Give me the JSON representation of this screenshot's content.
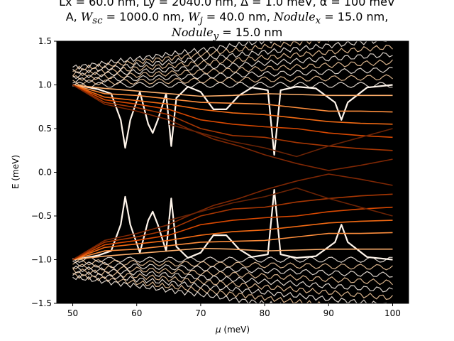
{
  "chart_data": {
    "type": "line",
    "title_lines": [
      "Lx = 60.0 nm, Ly = 2040.0 nm, Δ = 1.0 meV, α = 100 meV",
      "A, W_sc = 1000.0 nm, W_j = 40.0 nm, Nodule_x = 15.0 nm,",
      "Nodule_y = 15.0 nm"
    ],
    "title_parts": {
      "line1": "Lx = 60.0 nm, Ly = 2040.0 nm, Δ = 1.0 meV, α = 100 meV",
      "line2_a": "A, ",
      "line2_wsc": "W",
      "line2_wsc_sub": "sc",
      "line2_b": " = 1000.0 nm, ",
      "line2_wj": "W",
      "line2_wj_sub": "j",
      "line2_c": " = 40.0 nm, ",
      "line2_nx": "Nodule",
      "line2_nx_sub": "x",
      "line2_d": " = 15.0 nm,",
      "line3_ny": "Nodule",
      "line3_ny_sub": "y",
      "line3_e": " = 15.0 nm"
    },
    "xlabel_symbol": "μ",
    "xlabel_unit": " (meV)",
    "ylabel": "E (meV)",
    "xlim": [
      47.5,
      102.5
    ],
    "ylim": [
      -1.5,
      1.5
    ],
    "xticks": [
      50,
      60,
      70,
      80,
      90,
      100
    ],
    "yticks": [
      -1.5,
      -1.0,
      -0.5,
      0.0,
      0.5,
      1.0,
      1.5
    ],
    "xtick_labels": [
      "50",
      "60",
      "70",
      "80",
      "90",
      "100"
    ],
    "ytick_labels": [
      "−1.5",
      "−1.0",
      "−0.5",
      "0.0",
      "0.5",
      "1.0",
      "1.5"
    ],
    "grid": false,
    "background_color": "#000000",
    "colormap": "Oranges_r (dark to light)",
    "gap_closings_mu": [
      58.2,
      62.5,
      65.4,
      81.5
    ],
    "series": [
      {
        "name": "gap-state",
        "color": "#fff5eb",
        "x": [
          50,
          52,
          54,
          56,
          57.5,
          58.2,
          59,
          60.5,
          61.8,
          62.5,
          63.3,
          64.6,
          65.4,
          66.2,
          68,
          70,
          72,
          74,
          76,
          78,
          80.5,
          81.5,
          82.5,
          85,
          88,
          91,
          92,
          93,
          96,
          100
        ],
        "y": [
          1.0,
          0.98,
          0.95,
          0.9,
          0.6,
          0.28,
          0.6,
          0.92,
          0.55,
          0.45,
          0.6,
          0.9,
          0.3,
          0.85,
          0.98,
          0.92,
          0.72,
          0.72,
          0.88,
          0.97,
          0.94,
          0.2,
          0.94,
          0.98,
          0.96,
          0.8,
          0.6,
          0.8,
          0.97,
          1.0
        ]
      },
      {
        "name": "band-1",
        "color": "#fdae6b",
        "x": [
          50,
          55,
          60,
          65,
          70,
          75,
          80,
          85,
          90,
          95,
          100
        ],
        "y": [
          1.0,
          0.96,
          0.93,
          0.9,
          0.87,
          0.88,
          0.9,
          0.89,
          0.88,
          0.88,
          0.88
        ]
      },
      {
        "name": "band-2",
        "color": "#fd8d3c",
        "x": [
          50,
          55,
          60,
          65,
          70,
          75,
          80,
          85,
          90,
          95,
          100
        ],
        "y": [
          1.0,
          0.9,
          0.88,
          0.84,
          0.8,
          0.79,
          0.78,
          0.74,
          0.7,
          0.7,
          0.69
        ]
      },
      {
        "name": "band-3",
        "color": "#f16913",
        "x": [
          50,
          55,
          60,
          65,
          70,
          75,
          80,
          85,
          90,
          95,
          100
        ],
        "y": [
          1.0,
          0.86,
          0.82,
          0.78,
          0.72,
          0.68,
          0.66,
          0.62,
          0.58,
          0.56,
          0.55
        ]
      },
      {
        "name": "band-4",
        "color": "#d94801",
        "x": [
          50,
          55,
          60,
          65,
          70,
          75,
          80,
          85,
          90,
          95,
          100
        ],
        "y": [
          1.0,
          0.83,
          0.78,
          0.72,
          0.6,
          0.55,
          0.52,
          0.5,
          0.45,
          0.42,
          0.4
        ]
      },
      {
        "name": "band-5",
        "color": "#a63603",
        "x": [
          50,
          55,
          60,
          65,
          70,
          75,
          80,
          85,
          90,
          95,
          100
        ],
        "y": [
          1.0,
          0.8,
          0.74,
          0.66,
          0.5,
          0.42,
          0.4,
          0.34,
          0.3,
          0.27,
          0.25
        ]
      },
      {
        "name": "band-6",
        "color": "#7f2704",
        "x": [
          50,
          55,
          60,
          65,
          68,
          72,
          76,
          80,
          85,
          90,
          95,
          100
        ],
        "y": [
          1.0,
          0.78,
          0.7,
          0.6,
          0.5,
          0.38,
          0.3,
          0.2,
          0.1,
          0.02,
          0.08,
          0.15
        ]
      },
      {
        "name": "band-7",
        "color": "#6b2305",
        "x": [
          65,
          70,
          75,
          80,
          85,
          90,
          95,
          100
        ],
        "y": [
          0.55,
          0.45,
          0.35,
          0.28,
          0.18,
          0.3,
          0.4,
          0.5
        ]
      }
    ]
  }
}
